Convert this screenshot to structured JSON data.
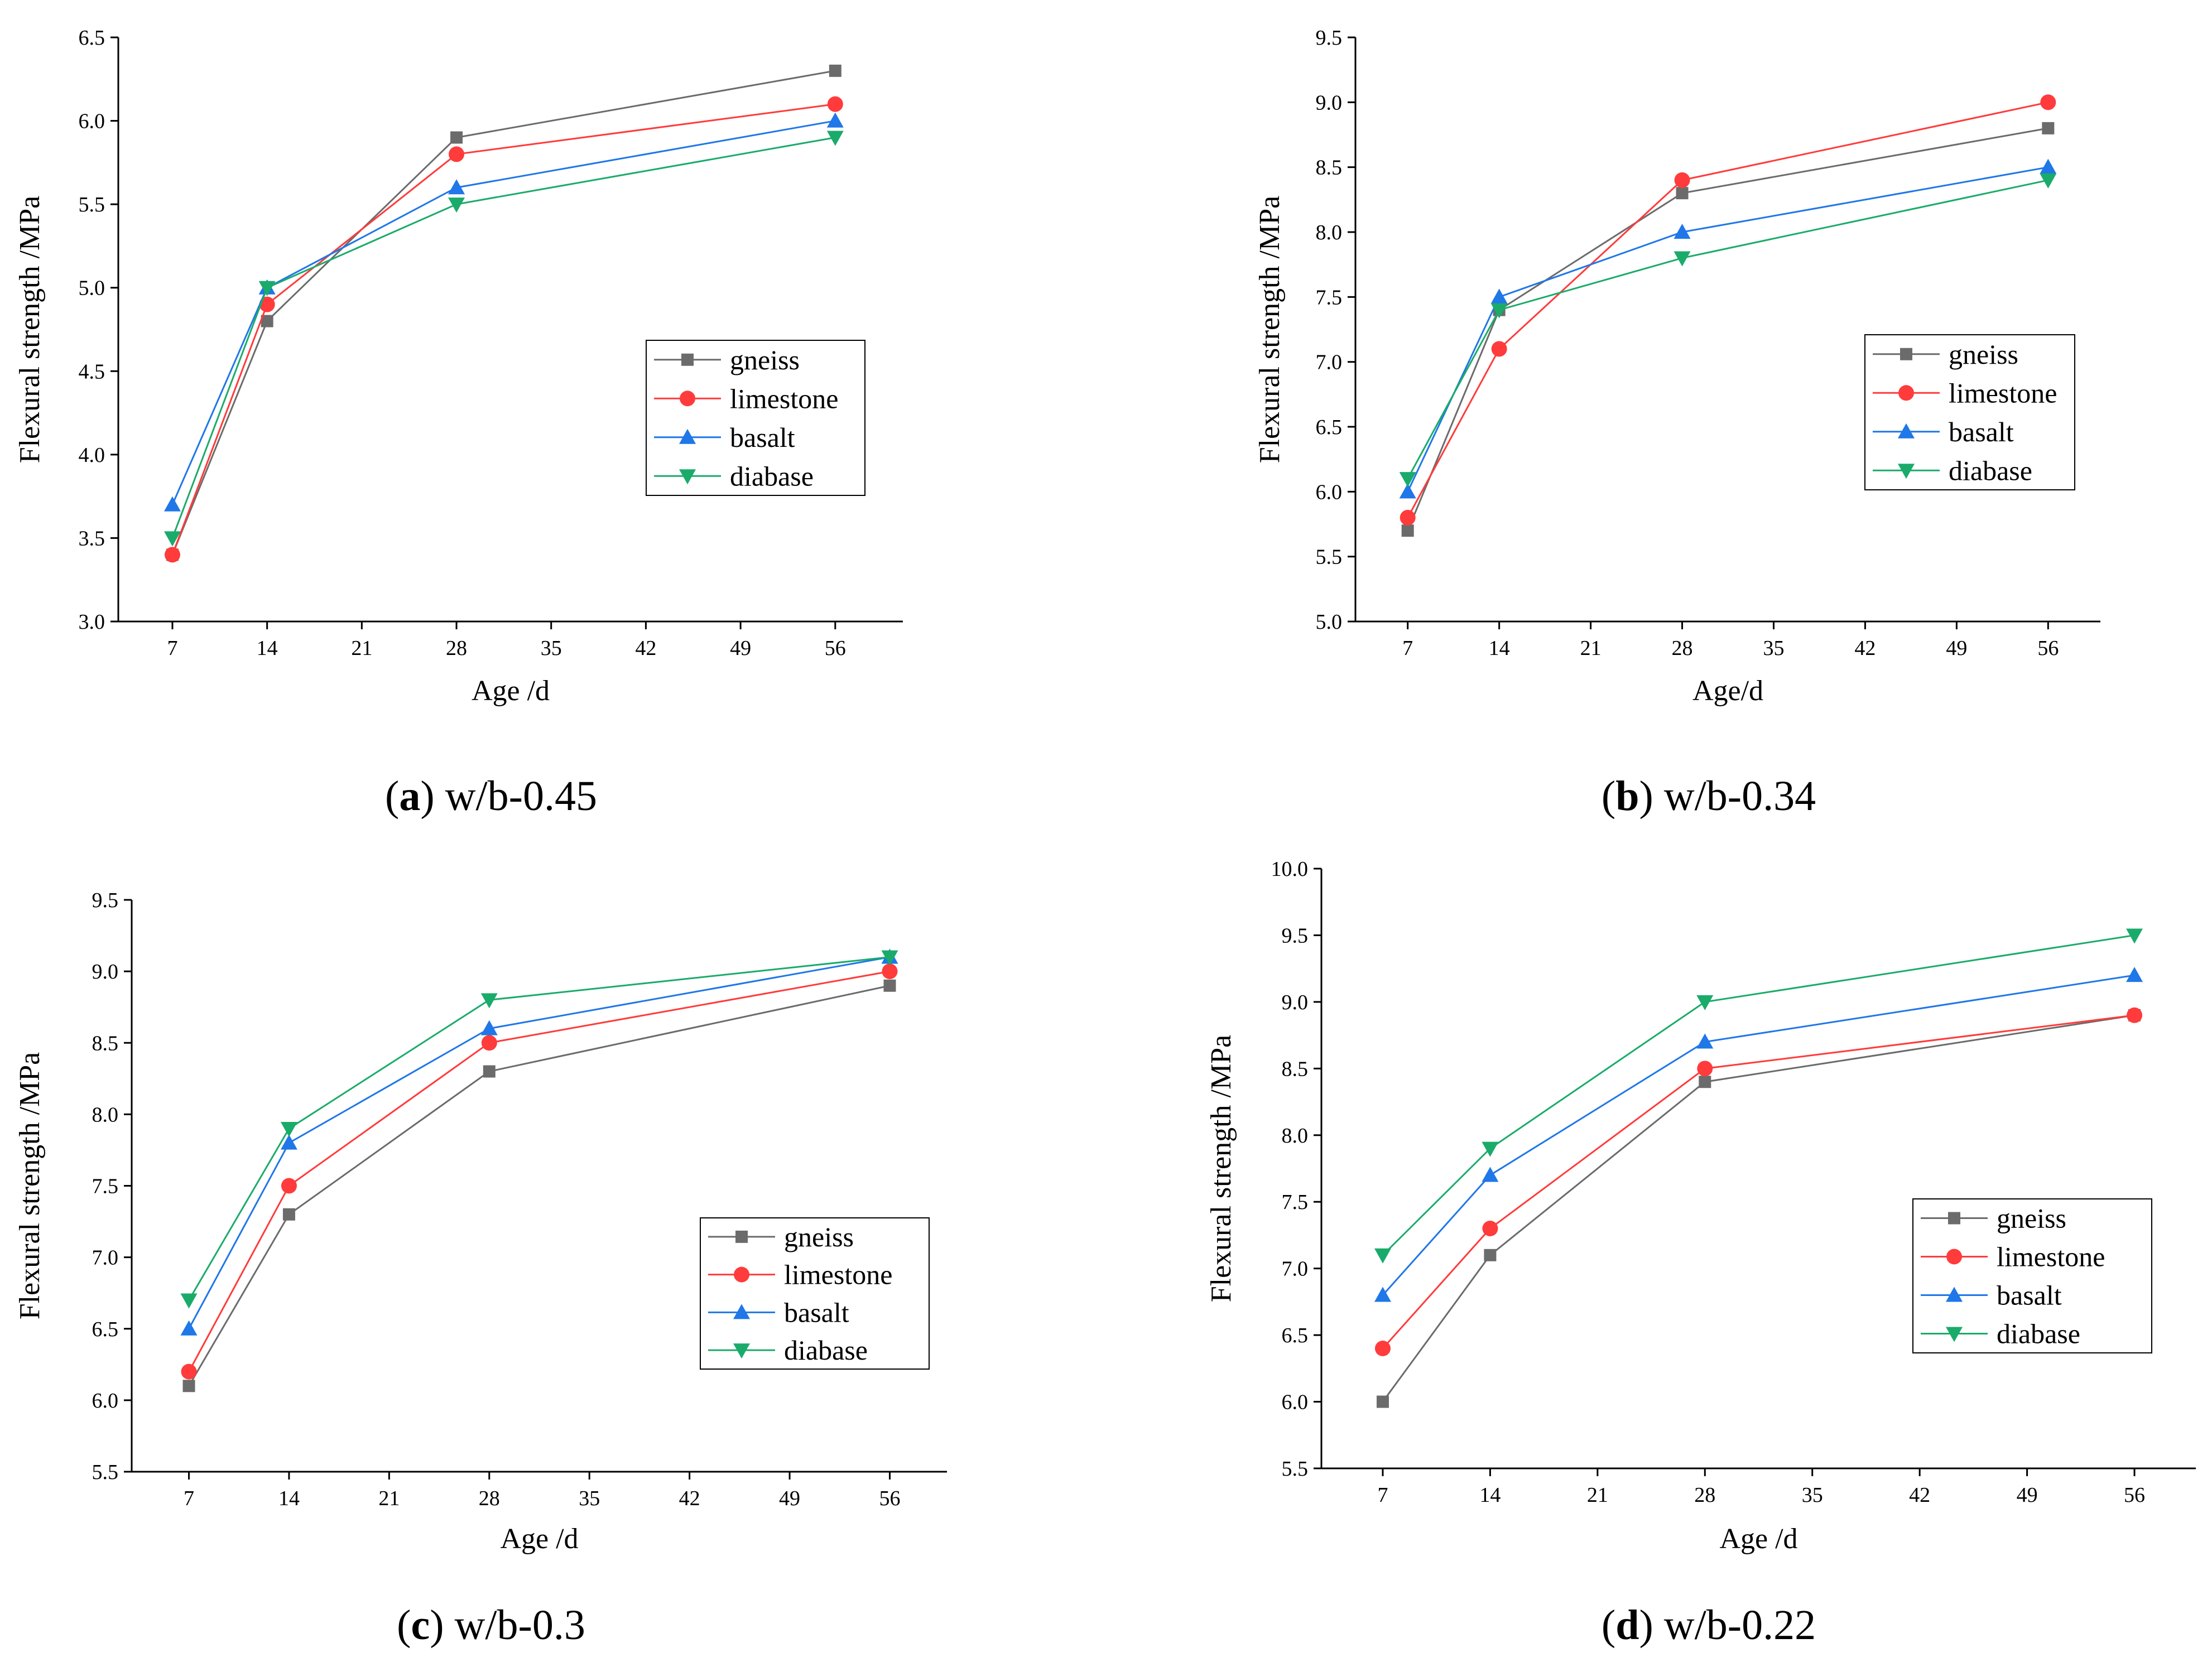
{
  "colors": {
    "gneiss": "#6b6b6b",
    "limestone": "#ff3b3b",
    "basalt": "#1f77e8",
    "diabase": "#1aab6a",
    "axis": "#000000"
  },
  "legend": {
    "entries": [
      {
        "key": "gneiss",
        "label": "gneiss",
        "marker": "square"
      },
      {
        "key": "limestone",
        "label": "limestone",
        "marker": "circle"
      },
      {
        "key": "basalt",
        "label": "basalt",
        "marker": "triangle-up"
      },
      {
        "key": "diabase",
        "label": "diabase",
        "marker": "triangle-down"
      }
    ]
  },
  "chart_data": [
    {
      "type": "line",
      "panel_letter": "a",
      "caption": "w/b-0.45",
      "xlabel": "Age /d",
      "ylabel": "Flexural strength /MPa",
      "x_ticks": [
        7,
        14,
        21,
        28,
        35,
        42,
        49,
        56
      ],
      "y_ticks": [
        "3.0",
        "3.5",
        "4.0",
        "4.5",
        "5.0",
        "5.5",
        "6.0",
        "6.5"
      ],
      "xlim": [
        3,
        61
      ],
      "ylim": [
        3.0,
        6.5
      ],
      "legend_position": "right-middle",
      "x": [
        7,
        14,
        28,
        56
      ],
      "series": [
        {
          "name": "gneiss",
          "values": [
            3.4,
            4.8,
            5.9,
            6.3
          ]
        },
        {
          "name": "limestone",
          "values": [
            3.4,
            4.9,
            5.8,
            6.1
          ]
        },
        {
          "name": "basalt",
          "values": [
            3.7,
            5.0,
            5.6,
            6.0
          ]
        },
        {
          "name": "diabase",
          "values": [
            3.5,
            5.0,
            5.5,
            5.9
          ]
        }
      ]
    },
    {
      "type": "line",
      "panel_letter": "b",
      "caption": "w/b-0.34",
      "xlabel": "Age/d",
      "ylabel": "Flexural strength /MPa",
      "x_ticks": [
        7,
        14,
        21,
        28,
        35,
        42,
        49,
        56
      ],
      "y_ticks": [
        "5.0",
        "5.5",
        "6.0",
        "6.5",
        "7.0",
        "7.5",
        "8.0",
        "8.5",
        "9.0",
        "9.5"
      ],
      "xlim": [
        3,
        60
      ],
      "ylim": [
        5.0,
        9.5
      ],
      "legend_position": "right-middle",
      "x": [
        7,
        14,
        28,
        56
      ],
      "series": [
        {
          "name": "gneiss",
          "values": [
            5.7,
            7.4,
            8.3,
            8.8
          ]
        },
        {
          "name": "limestone",
          "values": [
            5.8,
            7.1,
            8.4,
            9.0
          ]
        },
        {
          "name": "basalt",
          "values": [
            6.0,
            7.5,
            8.0,
            8.5
          ]
        },
        {
          "name": "diabase",
          "values": [
            6.1,
            7.4,
            7.8,
            8.4
          ]
        }
      ]
    },
    {
      "type": "line",
      "panel_letter": "c",
      "caption": "w/b-0.3",
      "xlabel": "Age /d",
      "ylabel": "Flexural strength /MPa",
      "x_ticks": [
        7,
        14,
        21,
        28,
        35,
        42,
        49,
        56
      ],
      "y_ticks": [
        "5.5",
        "6.0",
        "6.5",
        "7.0",
        "7.5",
        "8.0",
        "8.5",
        "9.0",
        "9.5"
      ],
      "xlim": [
        3,
        60
      ],
      "ylim": [
        5.5,
        9.5
      ],
      "legend_position": "right-lower",
      "x": [
        7,
        14,
        28,
        56
      ],
      "series": [
        {
          "name": "gneiss",
          "values": [
            6.1,
            7.3,
            8.3,
            8.9
          ]
        },
        {
          "name": "limestone",
          "values": [
            6.2,
            7.5,
            8.5,
            9.0
          ]
        },
        {
          "name": "basalt",
          "values": [
            6.5,
            7.8,
            8.6,
            9.1
          ]
        },
        {
          "name": "diabase",
          "values": [
            6.7,
            7.9,
            8.8,
            9.1
          ]
        }
      ]
    },
    {
      "type": "line",
      "panel_letter": "d",
      "caption": "w/b-0.22",
      "xlabel": "Age /d",
      "ylabel": "Flexural strength /MPa",
      "x_ticks": [
        7,
        14,
        21,
        28,
        35,
        42,
        49,
        56
      ],
      "y_ticks": [
        "5.5",
        "6.0",
        "6.5",
        "7.0",
        "7.5",
        "8.0",
        "8.5",
        "9.0",
        "9.5",
        "10.0"
      ],
      "xlim": [
        3,
        60
      ],
      "ylim": [
        5.5,
        10.0
      ],
      "legend_position": "right-lower",
      "x": [
        7,
        14,
        28,
        56
      ],
      "series": [
        {
          "name": "gneiss",
          "values": [
            6.0,
            7.1,
            8.4,
            8.9
          ]
        },
        {
          "name": "limestone",
          "values": [
            6.4,
            7.3,
            8.5,
            8.9
          ]
        },
        {
          "name": "basalt",
          "values": [
            6.8,
            7.7,
            8.7,
            9.2
          ]
        },
        {
          "name": "diabase",
          "values": [
            7.1,
            7.9,
            9.0,
            9.5
          ]
        }
      ]
    }
  ]
}
